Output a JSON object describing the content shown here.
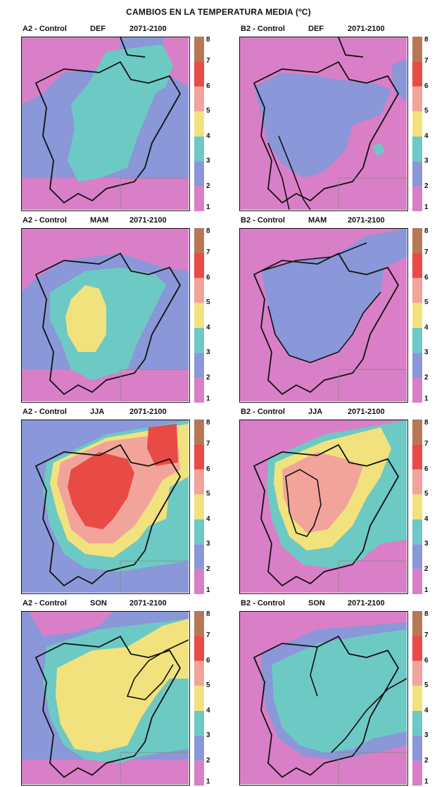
{
  "title": "CAMBIOS EN LA TEMPERATURA MEDIA  (ºC)",
  "colorbar": {
    "ticks": [
      "1",
      "2",
      "3",
      "4",
      "5",
      "6",
      "7",
      "8"
    ],
    "bands": [
      {
        "from": 1,
        "to": 2,
        "color": "#d97fc7"
      },
      {
        "from": 2,
        "to": 3,
        "color": "#8a97d8"
      },
      {
        "from": 3,
        "to": 4,
        "color": "#6dc9c4"
      },
      {
        "from": 4,
        "to": 5,
        "color": "#f1e27d"
      },
      {
        "from": 5,
        "to": 6,
        "color": "#f2a49a"
      },
      {
        "from": 6,
        "to": 7,
        "color": "#e84a45"
      },
      {
        "from": 7,
        "to": 8,
        "color": "#b87755"
      }
    ]
  },
  "panels": [
    {
      "scenario": "A2 - Control",
      "season": "DEF",
      "period": "2071-2100",
      "background_color": "#8a97d8",
      "fill_colors": [
        "#d97fc7",
        "#6dc9c4"
      ]
    },
    {
      "scenario": "B2 - Control",
      "season": "DEF",
      "period": "2071-2100",
      "background_color": "#d97fc7",
      "fill_colors": [
        "#8a97d8",
        "#6dc9c4"
      ]
    },
    {
      "scenario": "A2 - Control",
      "season": "MAM",
      "period": "2071-2100",
      "background_color": "#8a97d8",
      "fill_colors": [
        "#d97fc7",
        "#6dc9c4",
        "#f1e27d"
      ]
    },
    {
      "scenario": "B2 - Control",
      "season": "MAM",
      "period": "2071-2100",
      "background_color": "#d97fc7",
      "fill_colors": [
        "#8a97d8"
      ]
    },
    {
      "scenario": "A2 - Control",
      "season": "JJA",
      "period": "2071-2100",
      "background_color": "#8a97d8",
      "fill_colors": [
        "#6dc9c4",
        "#f1e27d",
        "#f2a49a",
        "#e84a45"
      ]
    },
    {
      "scenario": "B2 - Control",
      "season": "JJA",
      "period": "2071-2100",
      "background_color": "#d97fc7",
      "fill_colors": [
        "#6dc9c4",
        "#f1e27d",
        "#f2a49a"
      ]
    },
    {
      "scenario": "A2 - Control",
      "season": "SON",
      "period": "2071-2100",
      "background_color": "#8a97d8",
      "fill_colors": [
        "#d97fc7",
        "#6dc9c4",
        "#f1e27d"
      ]
    },
    {
      "scenario": "B2 - Control",
      "season": "SON",
      "period": "2071-2100",
      "background_color": "#d97fc7",
      "fill_colors": [
        "#8a97d8",
        "#6dc9c4"
      ]
    }
  ]
}
